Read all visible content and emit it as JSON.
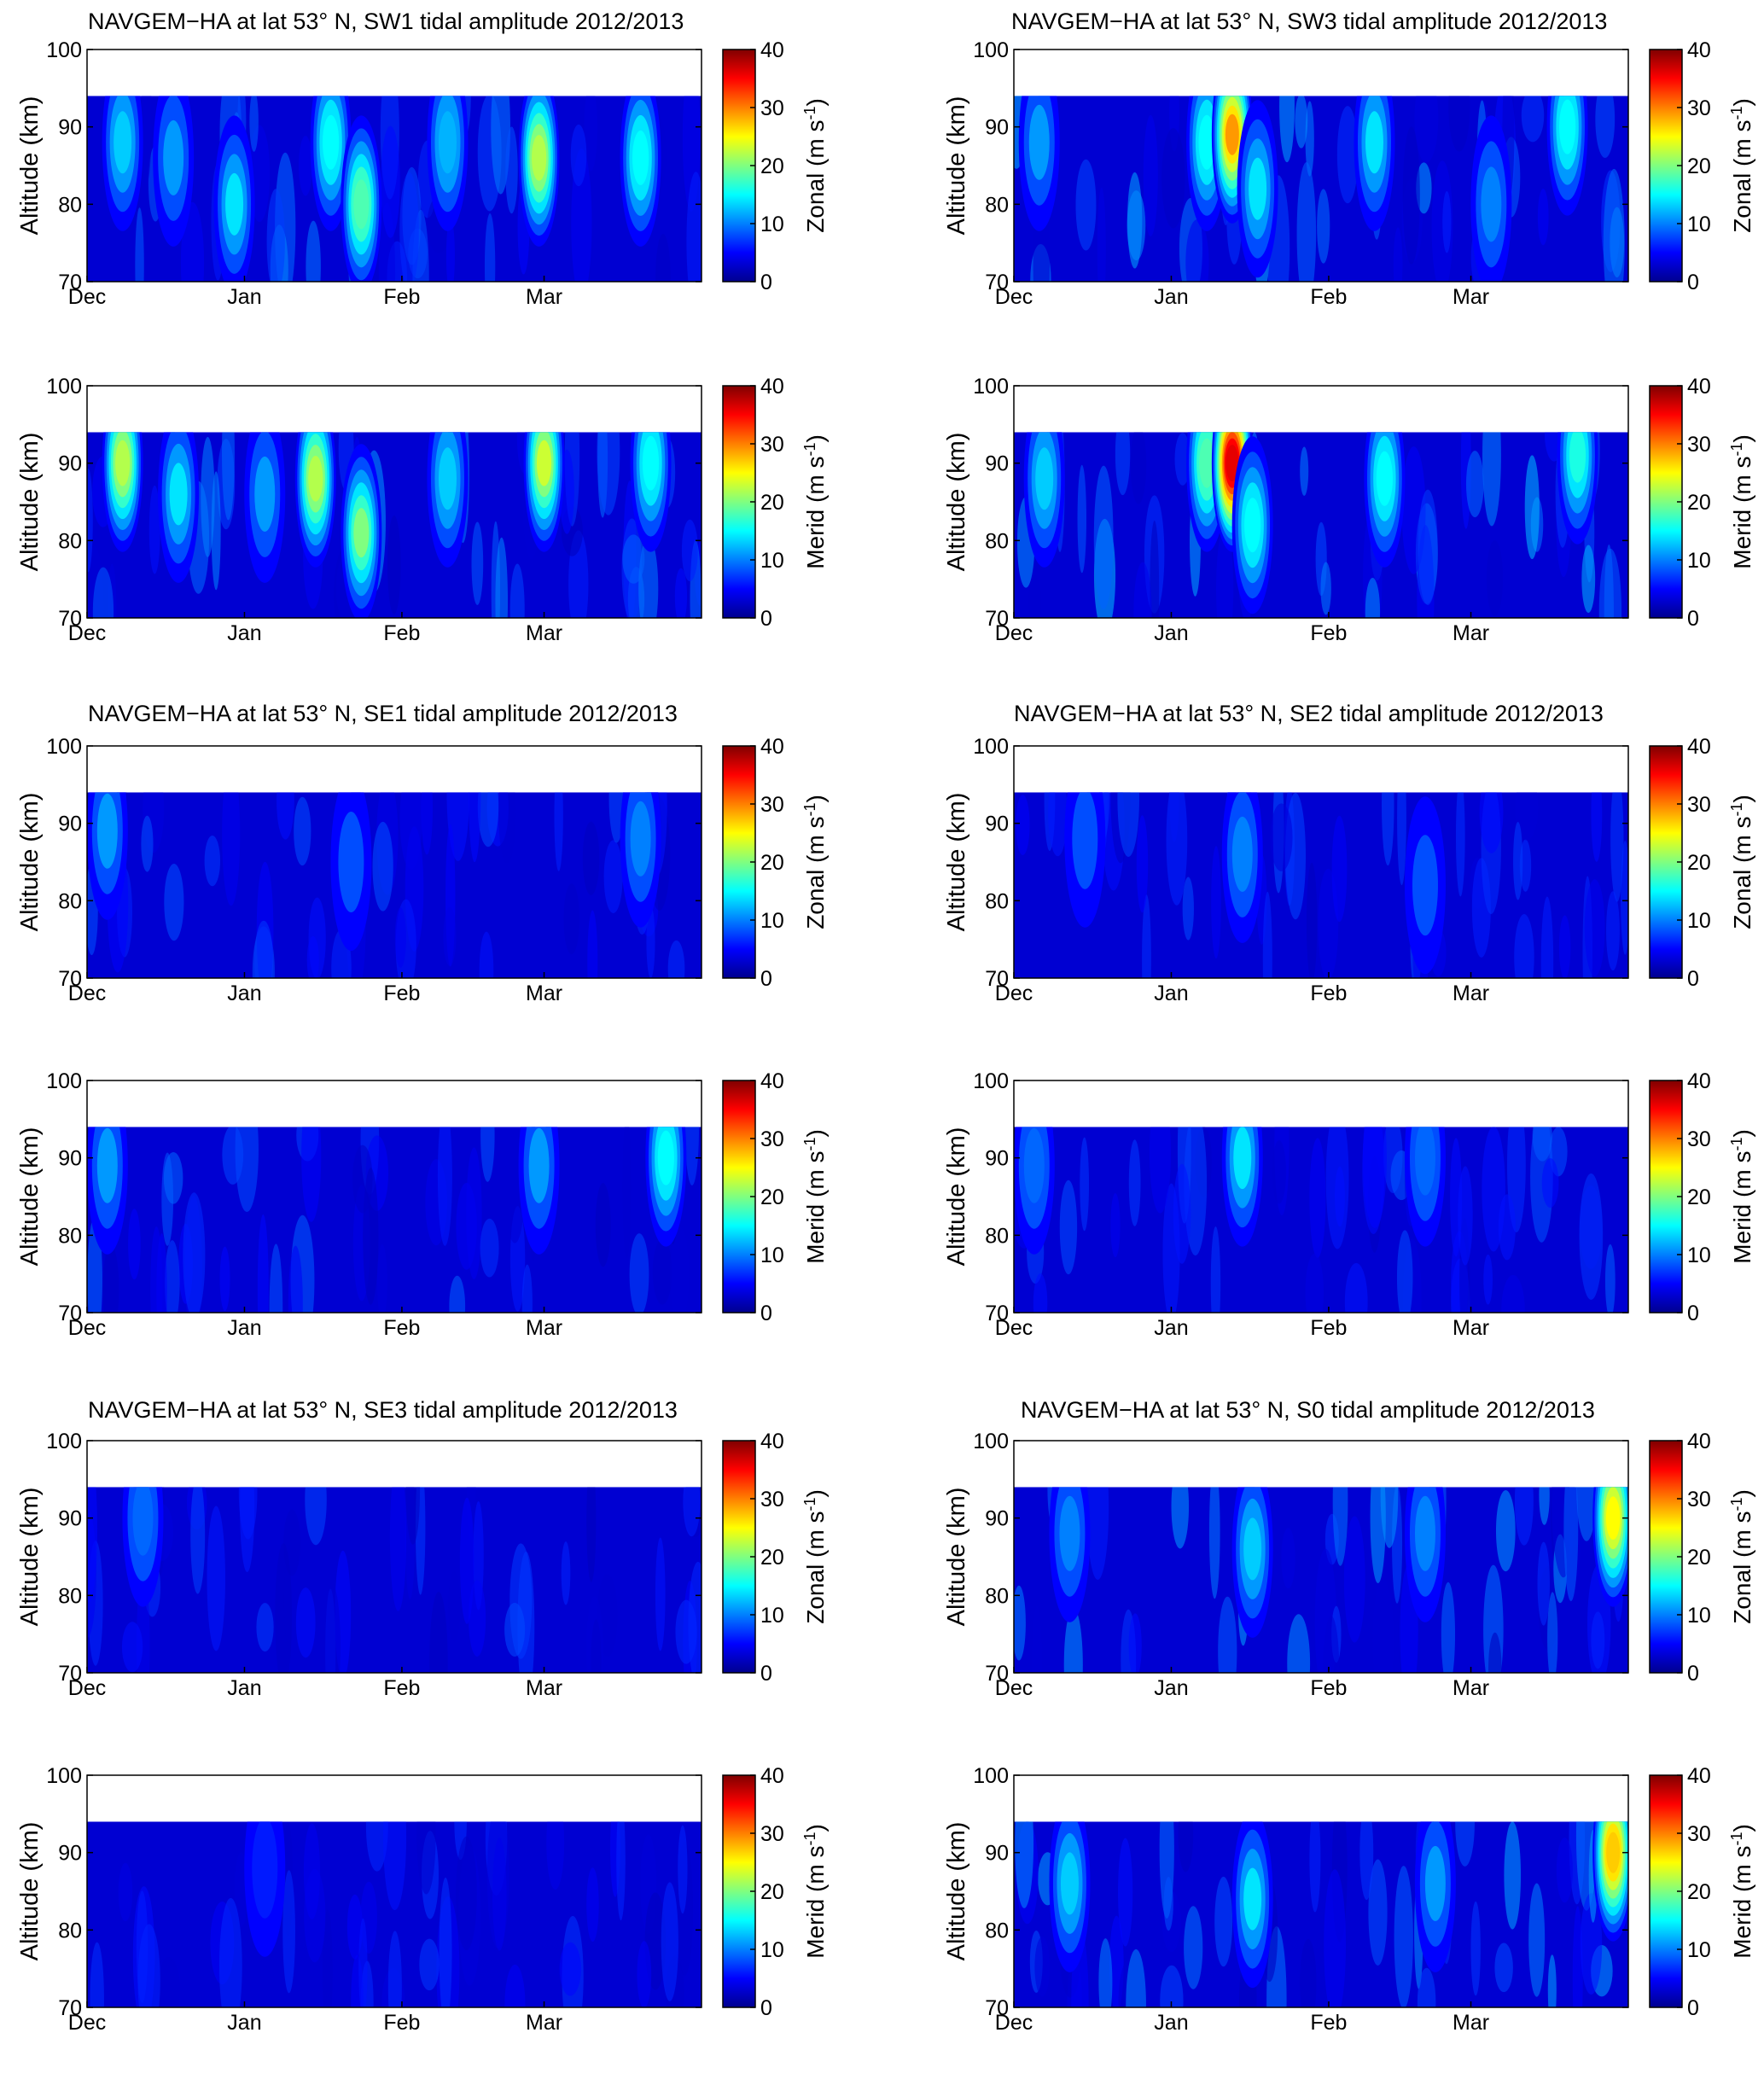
{
  "figure": {
    "y_axis_label": "Altitude (km)",
    "x_tick_labels": [
      "Dec",
      "Jan",
      "Feb",
      "Mar"
    ],
    "y_tick_labels": [
      "70",
      "80",
      "90",
      "100"
    ],
    "colorbar_tick_labels": [
      "0",
      "10",
      "20",
      "30",
      "40"
    ],
    "colorbar_unit": "(m s",
    "colorbar_unit_sup": "-1",
    "colorbar_unit_close": ")",
    "colormap": "jet",
    "colormap_colors": [
      "#00008f",
      "#0000ff",
      "#00ffff",
      "#ffff00",
      "#ff0000",
      "#800000"
    ]
  },
  "titles": {
    "sw1": "NAVGEM−HA at  lat 53° N, SW1 tidal amplitude 2012/2013",
    "sw3": "NAVGEM−HA at  lat 53° N, SW3 tidal amplitude 2012/2013",
    "se1": "NAVGEM−HA at  lat 53° N, SE1 tidal amplitude 2012/2013",
    "se2": "NAVGEM−HA at  lat 53° N, SE2 tidal amplitude 2012/2013",
    "se3": "NAVGEM−HA at  lat 53° N, SE3 tidal amplitude 2012/2013",
    "s0": "NAVGEM−HA at  lat 53° N, S0 tidal amplitude 2012/2013"
  },
  "chart_data": [
    {
      "type": "heatmap",
      "tide": "SW1",
      "component": "Zonal",
      "xlabel": "",
      "ylabel": "Altitude (km)",
      "ylim": [
        70,
        100
      ],
      "data_top_km": 94,
      "clim": [
        0,
        40
      ],
      "x_range": [
        "2012-12-01",
        "2013-04-01"
      ],
      "hotspots": [
        {
          "date": "2012-12-08",
          "alt_km": 88,
          "value": 13
        },
        {
          "date": "2012-12-18",
          "alt_km": 86,
          "value": 11
        },
        {
          "date": "2012-12-30",
          "alt_km": 80,
          "value": 14
        },
        {
          "date": "2013-01-18",
          "alt_km": 88,
          "value": 15
        },
        {
          "date": "2013-01-24",
          "alt_km": 80,
          "value": 18
        },
        {
          "date": "2013-02-10",
          "alt_km": 88,
          "value": 12
        },
        {
          "date": "2013-02-28",
          "alt_km": 86,
          "value": 22
        },
        {
          "date": "2013-03-20",
          "alt_km": 86,
          "value": 15
        }
      ]
    },
    {
      "type": "heatmap",
      "tide": "SW3",
      "component": "Zonal",
      "xlabel": "",
      "ylabel": "Altitude (km)",
      "ylim": [
        70,
        100
      ],
      "data_top_km": 94,
      "clim": [
        0,
        40
      ],
      "x_range": [
        "2012-12-01",
        "2013-04-01"
      ],
      "hotspots": [
        {
          "date": "2012-12-06",
          "alt_km": 88,
          "value": 11
        },
        {
          "date": "2013-01-08",
          "alt_km": 88,
          "value": 15
        },
        {
          "date": "2013-01-13",
          "alt_km": 89,
          "value": 29
        },
        {
          "date": "2013-01-18",
          "alt_km": 82,
          "value": 14
        },
        {
          "date": "2013-02-10",
          "alt_km": 88,
          "value": 14
        },
        {
          "date": "2013-03-05",
          "alt_km": 80,
          "value": 10
        },
        {
          "date": "2013-03-20",
          "alt_km": 90,
          "value": 15
        }
      ]
    },
    {
      "type": "heatmap",
      "tide": "SW1",
      "component": "Merid",
      "xlabel": "",
      "ylabel": "Altitude (km)",
      "ylim": [
        70,
        100
      ],
      "data_top_km": 94,
      "clim": [
        0,
        40
      ],
      "x_range": [
        "2012-12-01",
        "2013-04-01"
      ],
      "hotspots": [
        {
          "date": "2012-12-08",
          "alt_km": 90,
          "value": 22
        },
        {
          "date": "2012-12-19",
          "alt_km": 86,
          "value": 14
        },
        {
          "date": "2013-01-05",
          "alt_km": 86,
          "value": 11
        },
        {
          "date": "2013-01-15",
          "alt_km": 88,
          "value": 22
        },
        {
          "date": "2013-01-24",
          "alt_km": 81,
          "value": 20
        },
        {
          "date": "2013-02-10",
          "alt_km": 88,
          "value": 13
        },
        {
          "date": "2013-03-01",
          "alt_km": 90,
          "value": 23
        },
        {
          "date": "2013-03-22",
          "alt_km": 90,
          "value": 15
        }
      ]
    },
    {
      "type": "heatmap",
      "tide": "SW3",
      "component": "Merid",
      "xlabel": "",
      "ylabel": "Altitude (km)",
      "ylim": [
        70,
        100
      ],
      "data_top_km": 94,
      "clim": [
        0,
        40
      ],
      "x_range": [
        "2012-12-01",
        "2013-04-01"
      ],
      "hotspots": [
        {
          "date": "2012-12-07",
          "alt_km": 88,
          "value": 13
        },
        {
          "date": "2013-01-08",
          "alt_km": 90,
          "value": 18
        },
        {
          "date": "2013-01-13",
          "alt_km": 90,
          "value": 36
        },
        {
          "date": "2013-01-17",
          "alt_km": 82,
          "value": 15
        },
        {
          "date": "2013-02-12",
          "alt_km": 88,
          "value": 15
        },
        {
          "date": "2013-03-22",
          "alt_km": 91,
          "value": 16
        }
      ]
    },
    {
      "type": "heatmap",
      "tide": "SE1",
      "component": "Zonal",
      "xlabel": "",
      "ylabel": "Altitude (km)",
      "ylim": [
        70,
        100
      ],
      "data_top_km": 94,
      "clim": [
        0,
        40
      ],
      "x_range": [
        "2012-12-01",
        "2013-04-01"
      ],
      "hotspots": [
        {
          "date": "2012-12-05",
          "alt_km": 89,
          "value": 11
        },
        {
          "date": "2013-01-22",
          "alt_km": 85,
          "value": 8
        },
        {
          "date": "2013-03-20",
          "alt_km": 88,
          "value": 10
        }
      ]
    },
    {
      "type": "heatmap",
      "tide": "SE2",
      "component": "Zonal",
      "xlabel": "",
      "ylabel": "Altitude (km)",
      "ylim": [
        70,
        100
      ],
      "data_top_km": 94,
      "clim": [
        0,
        40
      ],
      "x_range": [
        "2012-12-01",
        "2013-04-01"
      ],
      "hotspots": [
        {
          "date": "2012-12-15",
          "alt_km": 88,
          "value": 8
        },
        {
          "date": "2013-01-15",
          "alt_km": 86,
          "value": 10
        },
        {
          "date": "2013-02-20",
          "alt_km": 82,
          "value": 8
        }
      ]
    },
    {
      "type": "heatmap",
      "tide": "SE1",
      "component": "Merid",
      "xlabel": "",
      "ylabel": "Altitude (km)",
      "ylim": [
        70,
        100
      ],
      "data_top_km": 94,
      "clim": [
        0,
        40
      ],
      "x_range": [
        "2012-12-01",
        "2013-04-01"
      ],
      "hotspots": [
        {
          "date": "2012-12-05",
          "alt_km": 89,
          "value": 11
        },
        {
          "date": "2013-02-28",
          "alt_km": 89,
          "value": 11
        },
        {
          "date": "2013-03-25",
          "alt_km": 90,
          "value": 15
        }
      ]
    },
    {
      "type": "heatmap",
      "tide": "SE2",
      "component": "Merid",
      "xlabel": "",
      "ylabel": "Altitude (km)",
      "ylim": [
        70,
        100
      ],
      "data_top_km": 94,
      "clim": [
        0,
        40
      ],
      "x_range": [
        "2012-12-01",
        "2013-04-01"
      ],
      "hotspots": [
        {
          "date": "2012-12-05",
          "alt_km": 89,
          "value": 9
        },
        {
          "date": "2013-01-15",
          "alt_km": 90,
          "value": 14
        },
        {
          "date": "2013-02-20",
          "alt_km": 90,
          "value": 9
        }
      ]
    },
    {
      "type": "heatmap",
      "tide": "SE3",
      "component": "Zonal",
      "xlabel": "",
      "ylabel": "Altitude (km)",
      "ylim": [
        70,
        100
      ],
      "data_top_km": 94,
      "clim": [
        0,
        40
      ],
      "x_range": [
        "2012-12-01",
        "2013-04-01"
      ],
      "hotspots": [
        {
          "date": "2012-12-12",
          "alt_km": 90,
          "value": 9
        }
      ]
    },
    {
      "type": "heatmap",
      "tide": "S0",
      "component": "Zonal",
      "xlabel": "",
      "ylabel": "Altitude (km)",
      "ylim": [
        70,
        100
      ],
      "data_top_km": 94,
      "clim": [
        0,
        40
      ],
      "x_range": [
        "2012-12-01",
        "2013-04-01"
      ],
      "hotspots": [
        {
          "date": "2012-12-12",
          "alt_km": 88,
          "value": 10
        },
        {
          "date": "2013-01-17",
          "alt_km": 86,
          "value": 13
        },
        {
          "date": "2013-02-20",
          "alt_km": 88,
          "value": 10
        },
        {
          "date": "2013-03-29",
          "alt_km": 90,
          "value": 25
        }
      ]
    },
    {
      "type": "heatmap",
      "tide": "SE3",
      "component": "Merid",
      "xlabel": "",
      "ylabel": "Altitude (km)",
      "ylim": [
        70,
        100
      ],
      "data_top_km": 94,
      "clim": [
        0,
        40
      ],
      "x_range": [
        "2012-12-01",
        "2013-04-01"
      ],
      "hotspots": [
        {
          "date": "2013-01-05",
          "alt_km": 88,
          "value": 6
        }
      ]
    },
    {
      "type": "heatmap",
      "tide": "S0",
      "component": "Merid",
      "xlabel": "",
      "ylabel": "Altitude (km)",
      "ylim": [
        70,
        100
      ],
      "data_top_km": 94,
      "clim": [
        0,
        40
      ],
      "x_range": [
        "2012-12-01",
        "2013-04-01"
      ],
      "hotspots": [
        {
          "date": "2012-12-12",
          "alt_km": 86,
          "value": 13
        },
        {
          "date": "2013-01-17",
          "alt_km": 84,
          "value": 14
        },
        {
          "date": "2013-02-22",
          "alt_km": 86,
          "value": 11
        },
        {
          "date": "2013-03-29",
          "alt_km": 90,
          "value": 27
        }
      ]
    }
  ]
}
